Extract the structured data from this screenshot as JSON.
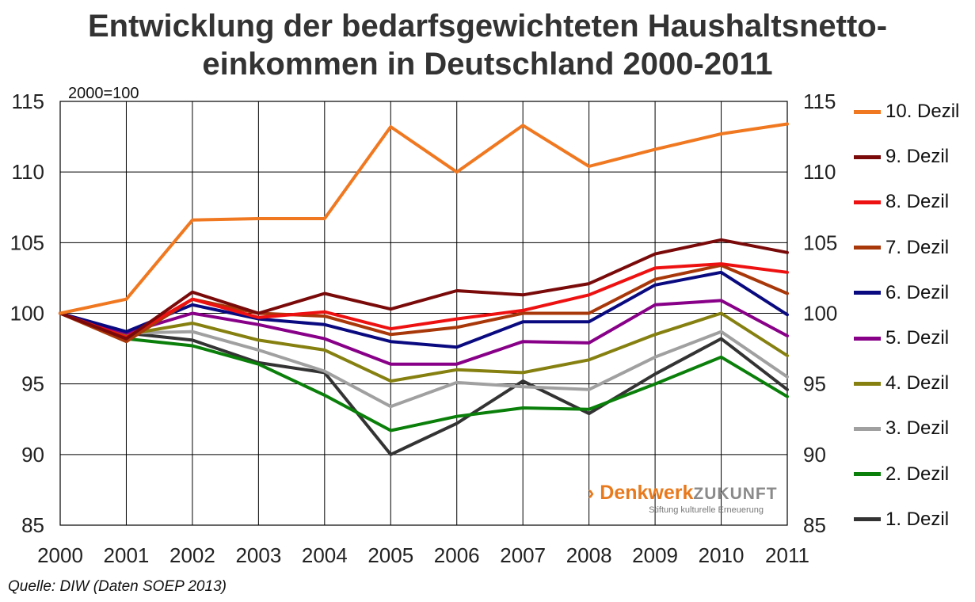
{
  "title_line1": "Entwicklung der bedarfsgewichteten Haushaltsnetto-",
  "title_line2": "einkommen in Deutschland 2000-2011",
  "index_note": "2000=100",
  "source": "Quelle: DIW (Daten SOEP 2013)",
  "logo": {
    "arrow": "›",
    "part1": "Denkwerk",
    "part2": "ZUKUNFT",
    "subtitle": "Stiftung kulturelle Erneuerung"
  },
  "chart_data": {
    "type": "line",
    "x": [
      "2000",
      "2001",
      "2002",
      "2003",
      "2004",
      "2005",
      "2006",
      "2007",
      "2008",
      "2009",
      "2010",
      "2011"
    ],
    "ylim": [
      85,
      115
    ],
    "yticks": [
      85,
      90,
      95,
      100,
      105,
      110,
      115
    ],
    "grid": true,
    "legend_position": "right",
    "series": [
      {
        "name": "10. Dezil",
        "color": "#f07820",
        "values": [
          100,
          101.0,
          106.6,
          106.7,
          106.7,
          113.2,
          110.0,
          113.3,
          110.4,
          111.6,
          112.7,
          113.4
        ]
      },
      {
        "name": "9. Dezil",
        "color": "#7a0a0a",
        "values": [
          100,
          98.2,
          101.5,
          100.0,
          101.4,
          100.3,
          101.6,
          101.3,
          102.1,
          104.2,
          105.2,
          104.3
        ]
      },
      {
        "name": "8. Dezil",
        "color": "#ee1111",
        "values": [
          100,
          98.3,
          101.0,
          99.7,
          100.1,
          98.9,
          99.6,
          100.2,
          101.3,
          103.2,
          103.5,
          102.9
        ]
      },
      {
        "name": "7. Dezil",
        "color": "#a8380a",
        "values": [
          100,
          98.0,
          101.0,
          100.0,
          99.8,
          98.5,
          99.0,
          100.0,
          100.0,
          102.4,
          103.4,
          101.4
        ]
      },
      {
        "name": "6. Dezil",
        "color": "#0a0a80",
        "values": [
          100,
          98.7,
          100.6,
          99.6,
          99.2,
          98.0,
          97.6,
          99.4,
          99.4,
          102.0,
          102.9,
          99.9
        ]
      },
      {
        "name": "5. Dezil",
        "color": "#880088",
        "values": [
          100,
          98.6,
          100.0,
          99.2,
          98.2,
          96.4,
          96.4,
          98.0,
          97.9,
          100.6,
          100.9,
          98.4
        ]
      },
      {
        "name": "4. Dezil",
        "color": "#858010",
        "values": [
          100,
          98.5,
          99.3,
          98.1,
          97.4,
          95.2,
          96.0,
          95.8,
          96.7,
          98.5,
          100.0,
          97.0
        ]
      },
      {
        "name": "3. Dezil",
        "color": "#a0a0a0",
        "values": [
          100,
          98.6,
          98.7,
          97.4,
          95.9,
          93.4,
          95.1,
          94.8,
          94.6,
          96.9,
          98.7,
          95.5
        ]
      },
      {
        "name": "2. Dezil",
        "color": "#0a7f0a",
        "values": [
          100,
          98.2,
          97.7,
          96.4,
          94.2,
          91.7,
          92.7,
          93.3,
          93.2,
          95.0,
          96.9,
          94.1
        ]
      },
      {
        "name": "1. Dezil",
        "color": "#333333",
        "values": [
          100,
          98.6,
          98.1,
          96.5,
          95.8,
          90.0,
          92.2,
          95.2,
          92.9,
          95.7,
          98.2,
          94.6
        ]
      }
    ]
  }
}
